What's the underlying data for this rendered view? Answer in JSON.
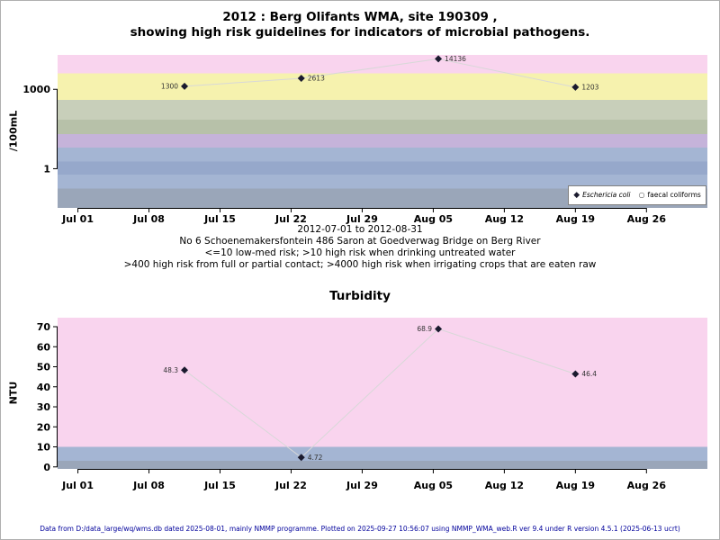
{
  "page": {
    "footer": "Data from D:/data_large/wq/wms.db dated 2025-08-01, mainly NMMP programme. Plotted on 2025-09-27 10:56:07 using NMMP_WMA_web.R ver 9.4 under R version 4.5.1 (2025-06-13 ucrt)"
  },
  "colors": {
    "pink": "#f9d4ee",
    "yellow": "#f6f2ae",
    "sage": "#c8cfba",
    "sage_dark": "#b7c1a9",
    "purple": "#c5b3da",
    "blue1": "#a4b5d3",
    "blue2": "#96a8cb",
    "gray_blue": "#9aa6b9",
    "point": "#1a1a2e",
    "connector": "#d8d8d8",
    "point_label": "#333333",
    "axis": "#000000",
    "footer_text": "#00009b"
  },
  "chart_data": [
    {
      "type": "scatter",
      "title_lines": [
        "2012 : Berg Olifants WMA, site 190309 ,",
        "showing high risk guidelines for indicators of microbial pathogens."
      ],
      "ylabel": "/100mL",
      "yscale": "log",
      "ylim": [
        0.033,
        20000
      ],
      "xlim_days": [
        -2,
        62
      ],
      "x_period": {
        "start": "2012-07-01",
        "end": "2012-08-31"
      },
      "yticks": [
        {
          "value": 1000,
          "label": "1000"
        },
        {
          "value": 1,
          "label": "1"
        }
      ],
      "xticks": [
        {
          "day": 0,
          "label": "Jul 01"
        },
        {
          "day": 7,
          "label": "Jul 08"
        },
        {
          "day": 14,
          "label": "Jul 15"
        },
        {
          "day": 21,
          "label": "Jul 22"
        },
        {
          "day": 28,
          "label": "Jul 29"
        },
        {
          "day": 35,
          "label": "Aug 05"
        },
        {
          "day": 42,
          "label": "Aug 12"
        },
        {
          "day": 49,
          "label": "Aug 19"
        },
        {
          "day": 56,
          "label": "Aug 26"
        }
      ],
      "series": [
        {
          "name": "Eschericia coli",
          "marker": "diamond",
          "points": [
            {
              "day": 10.5,
              "value": 1300,
              "label": "1300",
              "label_side": "left"
            },
            {
              "day": 22,
              "value": 2613,
              "label": "2613",
              "label_side": "right"
            },
            {
              "day": 35.5,
              "value": 14136,
              "label": "14136",
              "label_side": "right"
            },
            {
              "day": 49,
              "value": 1203,
              "label": "1203",
              "label_side": "right"
            }
          ]
        }
      ],
      "legend": [
        {
          "marker": "diamond",
          "label": "Eschericia coli"
        },
        {
          "marker": "circle",
          "label": "faecal coliforms"
        }
      ],
      "bands": [
        {
          "lo": 4000,
          "hi": "max",
          "color": "pink"
        },
        {
          "lo": 400,
          "hi": 4000,
          "color": "yellow"
        },
        {
          "lo": 70,
          "hi": 400,
          "color": "sage"
        },
        {
          "lo": 20,
          "hi": 70,
          "color": "sage_dark"
        },
        {
          "lo": 6.3,
          "hi": 20,
          "color": "purple"
        },
        {
          "lo": 1.9,
          "hi": 6.3,
          "color": "blue1"
        },
        {
          "lo": 0.6,
          "hi": 1.9,
          "color": "blue2"
        },
        {
          "lo": 0.18,
          "hi": 0.6,
          "color": "blue1"
        },
        {
          "lo": "min",
          "hi": 0.18,
          "color": "gray_blue"
        }
      ],
      "caption_lines": [
        "2012-07-01 to 2012-08-31",
        "No 6 Schoenemakersfontein 486 Saron at Goedverwag Bridge on Berg River",
        "<=10 low-med risk; >10 high risk when drinking untreated water",
        ">400 high risk from full or partial contact; >4000 high risk when irrigating crops that are eaten raw"
      ]
    },
    {
      "type": "scatter",
      "title_lines": [
        "Turbidity"
      ],
      "ylabel": "NTU",
      "yscale": "linear",
      "ylim": [
        -1,
        74.5
      ],
      "xlim_days": [
        -2,
        62
      ],
      "yticks": [
        {
          "value": 0,
          "label": "0"
        },
        {
          "value": 10,
          "label": "10"
        },
        {
          "value": 20,
          "label": "20"
        },
        {
          "value": 30,
          "label": "30"
        },
        {
          "value": 40,
          "label": "40"
        },
        {
          "value": 50,
          "label": "50"
        },
        {
          "value": 60,
          "label": "60"
        },
        {
          "value": 70,
          "label": "70"
        }
      ],
      "xticks": [
        {
          "day": 0,
          "label": "Jul 01"
        },
        {
          "day": 7,
          "label": "Jul 08"
        },
        {
          "day": 14,
          "label": "Jul 15"
        },
        {
          "day": 21,
          "label": "Jul 22"
        },
        {
          "day": 28,
          "label": "Jul 29"
        },
        {
          "day": 35,
          "label": "Aug 05"
        },
        {
          "day": 42,
          "label": "Aug 12"
        },
        {
          "day": 49,
          "label": "Aug 19"
        },
        {
          "day": 56,
          "label": "Aug 26"
        }
      ],
      "series": [
        {
          "name": "Turbidity",
          "marker": "diamond",
          "points": [
            {
              "day": 10.5,
              "value": 48.3,
              "label": "48.3",
              "label_side": "left"
            },
            {
              "day": 22,
              "value": 4.72,
              "label": "4.72",
              "label_side": "right"
            },
            {
              "day": 35.5,
              "value": 68.9,
              "label": "68.9",
              "label_side": "left"
            },
            {
              "day": 49,
              "value": 46.4,
              "label": "46.4",
              "label_side": "right"
            }
          ]
        }
      ],
      "bands": [
        {
          "lo": 10,
          "hi": "max",
          "color": "pink"
        },
        {
          "lo": 3,
          "hi": 10,
          "color": "blue1"
        },
        {
          "lo": "min",
          "hi": 3,
          "color": "gray_blue"
        }
      ]
    }
  ]
}
